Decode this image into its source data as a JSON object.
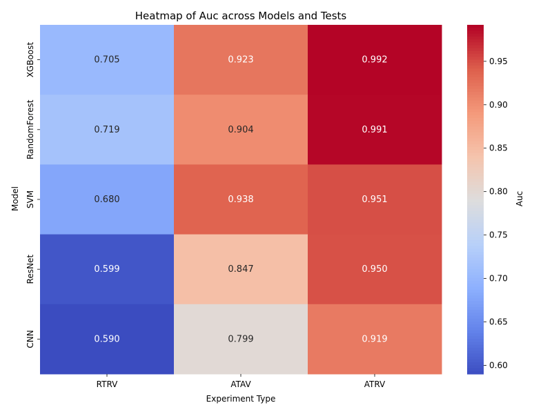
{
  "chart_data": {
    "type": "heatmap",
    "title": "Heatmap of Auc across Models and Tests",
    "xlabel": "Experiment Type",
    "ylabel": "Model",
    "x_categories": [
      "RTRV",
      "ATAV",
      "ATRV"
    ],
    "y_categories": [
      "XGBoost",
      "RandomForest",
      "SVM",
      "ResNet",
      "CNN"
    ],
    "values": [
      [
        0.705,
        0.923,
        0.992
      ],
      [
        0.719,
        0.904,
        0.991
      ],
      [
        0.68,
        0.938,
        0.951
      ],
      [
        0.599,
        0.847,
        0.95
      ],
      [
        0.59,
        0.799,
        0.919
      ]
    ],
    "value_labels": [
      [
        "0.705",
        "0.923",
        "0.992"
      ],
      [
        "0.719",
        "0.904",
        "0.991"
      ],
      [
        "0.680",
        "0.938",
        "0.951"
      ],
      [
        "0.599",
        "0.847",
        "0.950"
      ],
      [
        "0.590",
        "0.799",
        "0.919"
      ]
    ],
    "colormap": "coolwarm",
    "colorbar": {
      "label": "Auc",
      "min": 0.59,
      "max": 0.992,
      "ticks": [
        0.6,
        0.65,
        0.7,
        0.75,
        0.8,
        0.85,
        0.9,
        0.95
      ],
      "tick_labels": [
        "0.60",
        "0.65",
        "0.70",
        "0.75",
        "0.80",
        "0.85",
        "0.90",
        "0.95"
      ]
    },
    "grid": false,
    "legend": "colorbar-right"
  }
}
